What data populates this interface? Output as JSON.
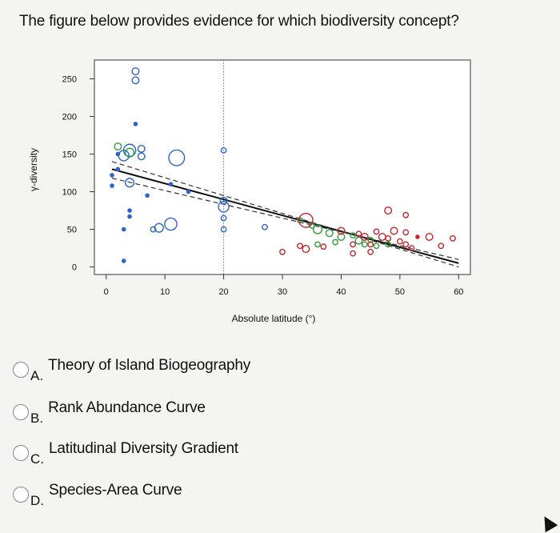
{
  "question": "The figure below provides evidence for which biodiversity concept?",
  "options": [
    {
      "letter": "A.",
      "text": "Theory of Island Biogeography"
    },
    {
      "letter": "B.",
      "text": "Rank Abundance Curve"
    },
    {
      "letter": "C.",
      "text": "Latitudinal Diversity Gradient"
    },
    {
      "letter": "D.",
      "text": "Species-Area Curve"
    }
  ],
  "chart_data": {
    "type": "scatter",
    "xlabel": "Absolute latitude (°)",
    "ylabel": "γ-diversity",
    "xlim": [
      -2,
      62
    ],
    "ylim": [
      -10,
      275
    ],
    "xticks": [
      0,
      10,
      20,
      30,
      40,
      50,
      60
    ],
    "yticks": [
      0,
      50,
      100,
      150,
      200,
      250
    ],
    "grid": false,
    "reference_line": {
      "x": 20,
      "style": "dotted"
    },
    "fit_lines": [
      {
        "style": "solid",
        "color": "#111111",
        "x": [
          1,
          60
        ],
        "y": [
          130,
          5
        ]
      },
      {
        "style": "dashed",
        "color": "#333333",
        "x": [
          1,
          60
        ],
        "y": [
          140,
          0
        ]
      },
      {
        "style": "dashed",
        "color": "#333333",
        "x": [
          1,
          60
        ],
        "y": [
          118,
          10
        ]
      }
    ],
    "series": [
      {
        "color": "#2d63c8",
        "points": [
          {
            "x": 5,
            "y": 260,
            "s": 3
          },
          {
            "x": 5,
            "y": 248,
            "s": 3
          },
          {
            "x": 5,
            "y": 190,
            "s": 1
          },
          {
            "x": 4,
            "y": 155,
            "s": 6
          },
          {
            "x": 3,
            "y": 148,
            "s": 5
          },
          {
            "x": 6,
            "y": 157,
            "s": 3
          },
          {
            "x": 6,
            "y": 147,
            "s": 3
          },
          {
            "x": 12,
            "y": 145,
            "s": 8
          },
          {
            "x": 2,
            "y": 150,
            "s": 1
          },
          {
            "x": 2,
            "y": 130,
            "s": 1
          },
          {
            "x": 4,
            "y": 112,
            "s": 4
          },
          {
            "x": 1,
            "y": 122,
            "s": 1
          },
          {
            "x": 1,
            "y": 108,
            "s": 1
          },
          {
            "x": 7,
            "y": 95,
            "s": 1
          },
          {
            "x": 4,
            "y": 75,
            "s": 1
          },
          {
            "x": 4,
            "y": 67,
            "s": 1
          },
          {
            "x": 3,
            "y": 50,
            "s": 1
          },
          {
            "x": 8,
            "y": 50,
            "s": 2
          },
          {
            "x": 9,
            "y": 52,
            "s": 4
          },
          {
            "x": 11,
            "y": 57,
            "s": 6
          },
          {
            "x": 20,
            "y": 155,
            "s": 2
          },
          {
            "x": 20,
            "y": 88,
            "s": 3
          },
          {
            "x": 20,
            "y": 80,
            "s": 5
          },
          {
            "x": 20,
            "y": 65,
            "s": 2
          },
          {
            "x": 20,
            "y": 50,
            "s": 2
          },
          {
            "x": 27,
            "y": 53,
            "s": 2
          },
          {
            "x": 14,
            "y": 100,
            "s": 1
          },
          {
            "x": 11,
            "y": 110,
            "s": 1
          },
          {
            "x": 3,
            "y": 8,
            "s": 1
          }
        ]
      },
      {
        "color": "#2f9a3c",
        "points": [
          {
            "x": 4,
            "y": 152,
            "s": 4
          },
          {
            "x": 2,
            "y": 160,
            "s": 3
          },
          {
            "x": 33,
            "y": 62,
            "s": 2
          },
          {
            "x": 35,
            "y": 55,
            "s": 2
          },
          {
            "x": 36,
            "y": 50,
            "s": 4
          },
          {
            "x": 38,
            "y": 45,
            "s": 3
          },
          {
            "x": 40,
            "y": 40,
            "s": 3
          },
          {
            "x": 42,
            "y": 42,
            "s": 2
          },
          {
            "x": 43,
            "y": 35,
            "s": 3
          },
          {
            "x": 44,
            "y": 30,
            "s": 2
          },
          {
            "x": 45,
            "y": 36,
            "s": 2
          },
          {
            "x": 46,
            "y": 28,
            "s": 2
          },
          {
            "x": 48,
            "y": 30,
            "s": 2
          },
          {
            "x": 36,
            "y": 30,
            "s": 2
          },
          {
            "x": 39,
            "y": 33,
            "s": 2
          }
        ]
      },
      {
        "color": "#c8242a",
        "points": [
          {
            "x": 34,
            "y": 62,
            "s": 7
          },
          {
            "x": 40,
            "y": 48,
            "s": 3
          },
          {
            "x": 42,
            "y": 30,
            "s": 2
          },
          {
            "x": 43,
            "y": 44,
            "s": 2
          },
          {
            "x": 44,
            "y": 40,
            "s": 3
          },
          {
            "x": 45,
            "y": 30,
            "s": 2
          },
          {
            "x": 46,
            "y": 47,
            "s": 2
          },
          {
            "x": 47,
            "y": 40,
            "s": 3
          },
          {
            "x": 48,
            "y": 38,
            "s": 2
          },
          {
            "x": 48,
            "y": 75,
            "s": 3
          },
          {
            "x": 51,
            "y": 69,
            "s": 2
          },
          {
            "x": 49,
            "y": 48,
            "s": 3
          },
          {
            "x": 51,
            "y": 46,
            "s": 2
          },
          {
            "x": 50,
            "y": 34,
            "s": 2
          },
          {
            "x": 51,
            "y": 30,
            "s": 2
          },
          {
            "x": 52,
            "y": 25,
            "s": 2
          },
          {
            "x": 53,
            "y": 40,
            "s": 1
          },
          {
            "x": 55,
            "y": 40,
            "s": 3
          },
          {
            "x": 57,
            "y": 28,
            "s": 2
          },
          {
            "x": 59,
            "y": 38,
            "s": 2
          },
          {
            "x": 34,
            "y": 24,
            "s": 3
          },
          {
            "x": 33,
            "y": 28,
            "s": 2
          },
          {
            "x": 30,
            "y": 20,
            "s": 2
          },
          {
            "x": 37,
            "y": 27,
            "s": 2
          },
          {
            "x": 42,
            "y": 18,
            "s": 2
          },
          {
            "x": 45,
            "y": 20,
            "s": 2
          }
        ]
      }
    ]
  }
}
